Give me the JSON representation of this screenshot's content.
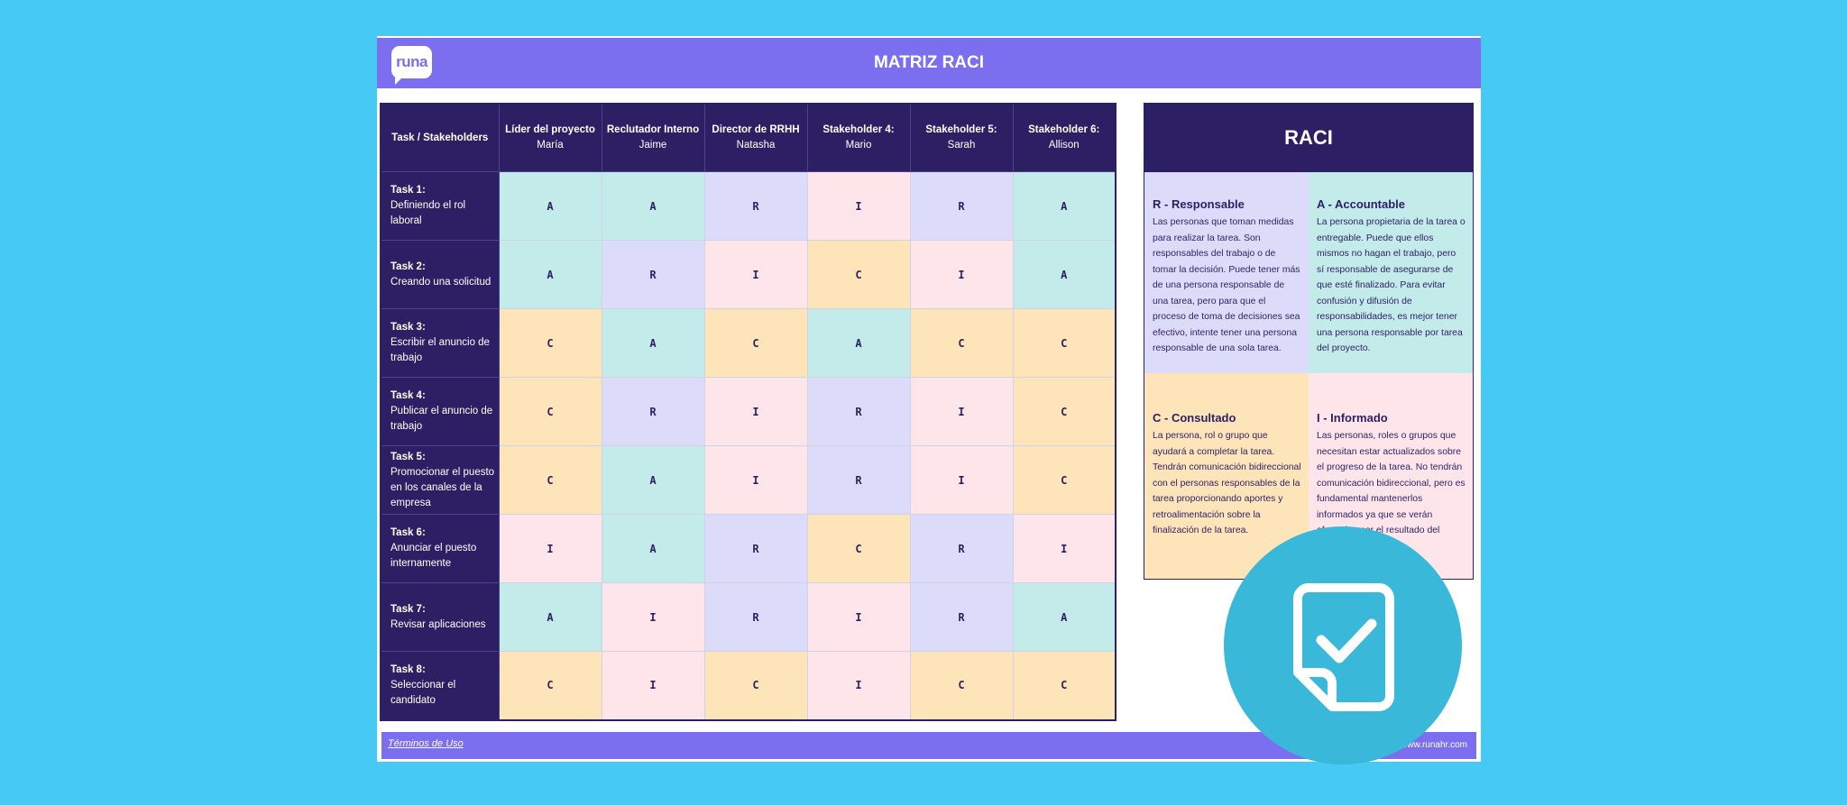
{
  "header": {
    "logo_text": "runa",
    "title": "MATRIZ RACI"
  },
  "matrix": {
    "corner_label": "Task / Stakeholders",
    "stakeholders": [
      {
        "role": "Líder del proyecto",
        "name": "María"
      },
      {
        "role": "Reclutador Interno",
        "name": "Jaime"
      },
      {
        "role": "Director de RRHH",
        "name": "Natasha"
      },
      {
        "role": "Stakeholder 4:",
        "name": "Mario"
      },
      {
        "role": "Stakeholder 5:",
        "name": "Sarah"
      },
      {
        "role": "Stakeholder 6:",
        "name": "Allison"
      }
    ],
    "tasks": [
      {
        "num": "Task 1:",
        "desc": "Definiendo el rol laboral",
        "values": [
          "A",
          "A",
          "R",
          "I",
          "R",
          "A"
        ]
      },
      {
        "num": "Task 2:",
        "desc": "Creando una solicitud",
        "values": [
          "A",
          "R",
          "I",
          "C",
          "I",
          "A"
        ]
      },
      {
        "num": "Task 3:",
        "desc": "Escribir el anuncio de trabajo",
        "values": [
          "C",
          "A",
          "C",
          "A",
          "C",
          "C"
        ]
      },
      {
        "num": "Task 4:",
        "desc": "Publicar el anuncio de trabajo",
        "values": [
          "C",
          "R",
          "I",
          "R",
          "I",
          "C"
        ]
      },
      {
        "num": "Task 5:",
        "desc": "Promocionar el puesto en los canales de la empresa",
        "values": [
          "C",
          "A",
          "I",
          "R",
          "I",
          "C"
        ]
      },
      {
        "num": "Task 6:",
        "desc": "Anunciar el puesto internamente",
        "values": [
          "I",
          "A",
          "R",
          "C",
          "R",
          "I"
        ]
      },
      {
        "num": "Task 7:",
        "desc": "Revisar aplicaciones",
        "values": [
          "A",
          "I",
          "R",
          "I",
          "R",
          "A"
        ]
      },
      {
        "num": "Task 8:",
        "desc": "Seleccionar el candidato",
        "values": [
          "C",
          "I",
          "C",
          "I",
          "C",
          "C"
        ]
      }
    ]
  },
  "legend": {
    "title": "RACI",
    "responsible": {
      "heading": "R - Responsable",
      "text": "Las personas que toman medidas para realizar la tarea. Son responsables del trabajo o de tomar la decisión. Puede tener más de una persona responsable de una tarea, pero para que el proceso de toma de decisiones sea efectivo, intente tener una persona responsable de una sola tarea."
    },
    "accountable": {
      "heading": "A - Accountable",
      "text": "La persona propietaria de la tarea o entregable. Puede que ellos mismos no hagan el trabajo, pero sí responsable de asegurarse de que esté finalizado. Para evitar confusión y difusión de responsabilidades, es mejor tener una persona responsable por tarea del proyecto."
    },
    "consulted": {
      "heading": "C - Consultado",
      "text": "La persona, rol o grupo que ayudará a completar la tarea. Tendrán comunicación bidireccional con el personas responsables de la tarea proporcionando aportes y retroalimentación sobre la finalización de la tarea."
    },
    "informed": {
      "heading": "I - Informado",
      "text": "Las personas, roles o grupos que necesitan estar actualizados sobre el progreso de la tarea. No tendrán comunicación bidireccional, pero es fundamental mantenerlos informados ya que se verán afectados por el resultado del proyecto."
    }
  },
  "footer": {
    "terms": "Términos de Uso",
    "url": "www.runahr.com"
  },
  "badge": {
    "icon": "checked-document-icon"
  },
  "colors": {
    "A": "#c2ebe9",
    "R": "#dcdcfa",
    "I": "#fde5ea",
    "C": "#fde4b9",
    "header": "#7b6ff0",
    "navy": "#2d1f63",
    "background": "#46c9f2"
  }
}
